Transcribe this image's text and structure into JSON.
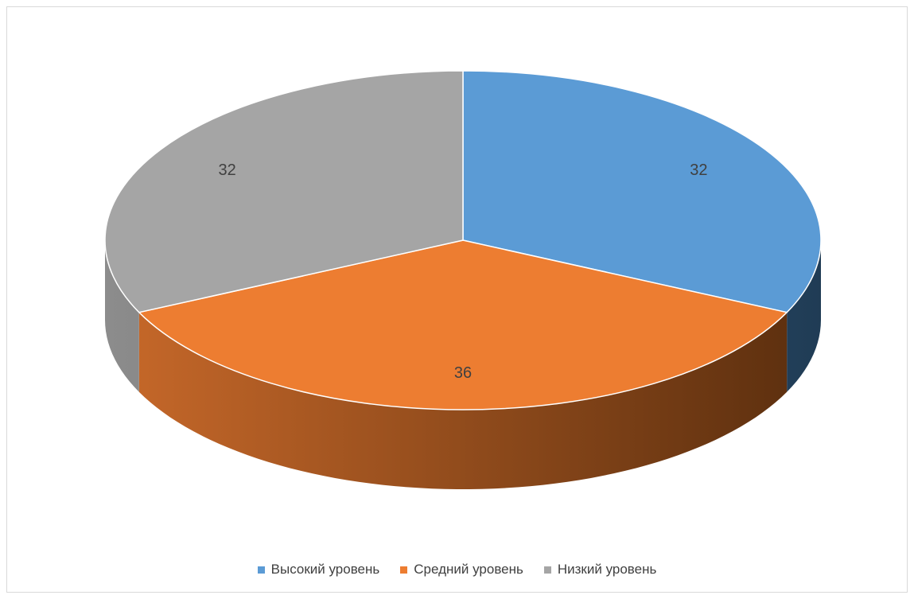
{
  "chart_data": {
    "type": "pie",
    "style": "3d",
    "title": "",
    "start_angle_deg": 0,
    "categories": [
      "Высокий уровень",
      "Средний уровень",
      "Низкий уровень"
    ],
    "values": [
      32,
      36,
      32
    ],
    "data_labels": [
      "32",
      "36",
      "32"
    ],
    "colors": [
      "#5b9bd5",
      "#ed7d31",
      "#a5a5a5"
    ],
    "side_colors_dark": [
      "#203c55",
      "#5a2e0e",
      "#5f5f5f"
    ],
    "side_colors_light": [
      "#3f6f9c",
      "#c8692a",
      "#8c8c8c"
    ],
    "legend_position": "bottom"
  },
  "legend": {
    "items": [
      {
        "label": "Высокий уровень",
        "color": "#5b9bd5"
      },
      {
        "label": "Средний уровень",
        "color": "#ed7d31"
      },
      {
        "label": "Низкий уровень",
        "color": "#a5a5a5"
      }
    ]
  }
}
